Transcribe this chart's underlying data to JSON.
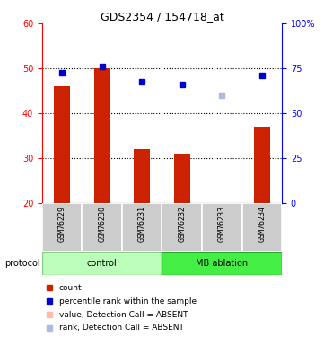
{
  "title": "GDS2354 / 154718_at",
  "samples": [
    "GSM76229",
    "GSM76230",
    "GSM76231",
    "GSM76232",
    "GSM76233",
    "GSM76234"
  ],
  "bar_values": [
    46,
    50,
    32,
    31,
    20,
    37
  ],
  "bar_absent": [
    false,
    false,
    false,
    false,
    true,
    false
  ],
  "rank_values": [
    49,
    50.5,
    47,
    46.5,
    44,
    48.5
  ],
  "rank_absent": [
    false,
    false,
    false,
    false,
    true,
    false
  ],
  "ylim_left": [
    20,
    60
  ],
  "ylim_right": [
    0,
    100
  ],
  "yticks_left": [
    20,
    30,
    40,
    50,
    60
  ],
  "yticks_right": [
    0,
    25,
    50,
    75,
    100
  ],
  "bar_color": "#cc2200",
  "bar_absent_color": "#ffbbaa",
  "rank_color": "#0000cc",
  "rank_absent_color": "#aabbdd",
  "control_color": "#bbffbb",
  "mb_color": "#44ee44",
  "bg_color": "#ffffff",
  "tick_area_color": "#cccccc",
  "bar_width": 0.4,
  "dotted_lines": [
    30,
    40,
    50
  ],
  "legend_items": [
    {
      "label": "count",
      "color": "#cc2200"
    },
    {
      "label": "percentile rank within the sample",
      "color": "#0000cc"
    },
    {
      "label": "value, Detection Call = ABSENT",
      "color": "#ffbbaa"
    },
    {
      "label": "rank, Detection Call = ABSENT",
      "color": "#aabbdd"
    }
  ]
}
